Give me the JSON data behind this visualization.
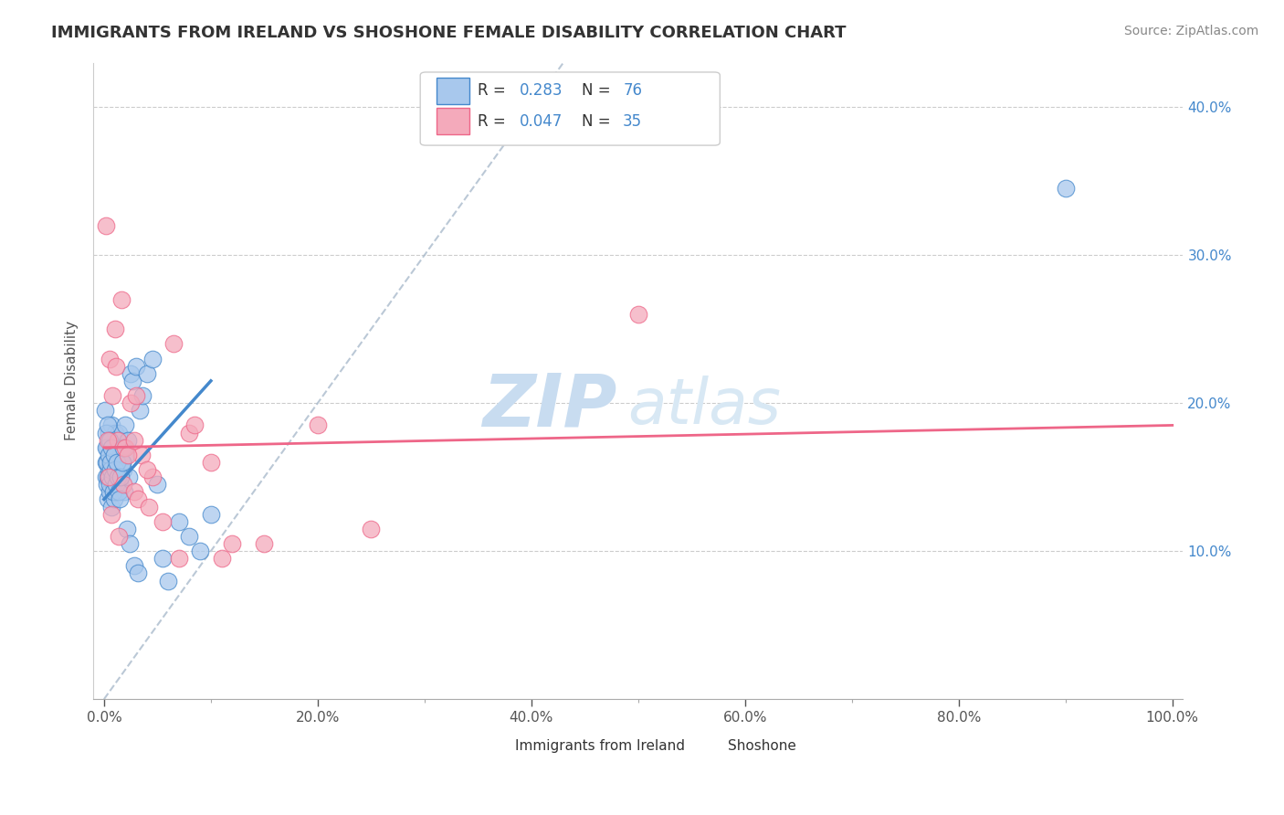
{
  "title": "IMMIGRANTS FROM IRELAND VS SHOSHONE FEMALE DISABILITY CORRELATION CHART",
  "source": "Source: ZipAtlas.com",
  "ylabel": "Female Disability",
  "x_tick_labels": [
    "0.0%",
    "20.0%",
    "40.0%",
    "60.0%",
    "80.0%",
    "100.0%"
  ],
  "x_tick_values": [
    0.0,
    20.0,
    40.0,
    60.0,
    80.0,
    100.0
  ],
  "y_tick_labels_right": [
    "10.0%",
    "20.0%",
    "30.0%",
    "40.0%"
  ],
  "y_tick_values": [
    10.0,
    20.0,
    30.0,
    40.0
  ],
  "y_min": 0.0,
  "y_max": 43.0,
  "x_min": -1.0,
  "x_max": 101.0,
  "color_blue": "#A8C8ED",
  "color_pink": "#F4AABB",
  "color_blue_line": "#4488CC",
  "color_pink_line": "#EE6688",
  "color_dashed": "#AABBCC",
  "watermark_zip": "ZIP",
  "watermark_atlas": "atlas",
  "watermark_color_zip": "#C8DCF0",
  "watermark_color_atlas": "#D8E8F4",
  "blue_scatter_x": [
    0.15,
    0.2,
    0.25,
    0.3,
    0.35,
    0.4,
    0.45,
    0.5,
    0.55,
    0.6,
    0.65,
    0.7,
    0.75,
    0.8,
    0.85,
    0.9,
    0.95,
    1.0,
    1.05,
    1.1,
    1.15,
    1.2,
    1.25,
    1.3,
    1.4,
    1.5,
    1.6,
    1.7,
    1.8,
    1.9,
    2.0,
    2.1,
    2.2,
    2.3,
    2.5,
    2.7,
    3.0,
    3.3,
    3.6,
    4.0,
    4.5,
    5.0,
    0.12,
    0.18,
    0.22,
    0.28,
    0.32,
    0.38,
    0.42,
    0.48,
    0.52,
    0.58,
    0.62,
    0.72,
    0.78,
    0.88,
    0.92,
    1.02,
    1.08,
    1.18,
    1.28,
    1.38,
    1.48,
    1.58,
    1.68,
    1.78,
    2.15,
    2.4,
    2.8,
    3.2,
    5.5,
    6.0,
    7.0,
    8.0,
    9.0,
    10.0,
    90.0
  ],
  "blue_scatter_y": [
    15.0,
    16.0,
    14.5,
    17.0,
    13.5,
    18.0,
    15.5,
    16.5,
    14.0,
    17.5,
    13.0,
    18.5,
    15.0,
    16.0,
    14.5,
    17.0,
    13.5,
    18.0,
    16.5,
    15.5,
    14.0,
    17.5,
    16.0,
    15.0,
    18.0,
    14.5,
    17.0,
    16.0,
    15.5,
    14.0,
    18.5,
    16.5,
    17.5,
    15.0,
    22.0,
    21.5,
    22.5,
    19.5,
    20.5,
    22.0,
    23.0,
    14.5,
    19.5,
    18.0,
    17.0,
    16.0,
    18.5,
    15.0,
    16.5,
    14.5,
    17.5,
    15.5,
    16.0,
    17.0,
    15.0,
    14.0,
    16.5,
    15.5,
    14.5,
    16.0,
    15.0,
    14.0,
    13.5,
    15.0,
    16.0,
    17.0,
    11.5,
    10.5,
    9.0,
    8.5,
    9.5,
    8.0,
    12.0,
    11.0,
    10.0,
    12.5,
    34.5
  ],
  "pink_scatter_x": [
    0.2,
    0.5,
    0.8,
    1.0,
    1.3,
    1.6,
    2.0,
    2.5,
    3.0,
    3.5,
    4.5,
    6.5,
    8.0,
    10.0,
    12.0,
    0.35,
    0.7,
    1.1,
    1.8,
    2.2,
    2.8,
    3.2,
    4.0,
    5.5,
    8.5,
    11.0,
    15.0,
    20.0,
    25.0,
    50.0,
    0.45,
    1.4,
    2.8,
    4.2,
    7.0
  ],
  "pink_scatter_y": [
    32.0,
    23.0,
    20.5,
    25.0,
    17.5,
    27.0,
    17.0,
    20.0,
    20.5,
    16.5,
    15.0,
    24.0,
    18.0,
    16.0,
    10.5,
    17.5,
    12.5,
    22.5,
    14.5,
    16.5,
    14.0,
    13.5,
    15.5,
    12.0,
    18.5,
    9.5,
    10.5,
    18.5,
    11.5,
    26.0,
    15.0,
    11.0,
    17.5,
    13.0,
    9.5
  ],
  "legend_labels": [
    "Immigrants from Ireland",
    "Shoshone"
  ],
  "blue_line_x0": 0.0,
  "blue_line_x1": 10.0,
  "blue_line_y0": 13.5,
  "blue_line_y1": 21.5,
  "pink_line_x0": 0.0,
  "pink_line_x1": 100.0,
  "pink_line_y0": 17.0,
  "pink_line_y1": 18.5
}
